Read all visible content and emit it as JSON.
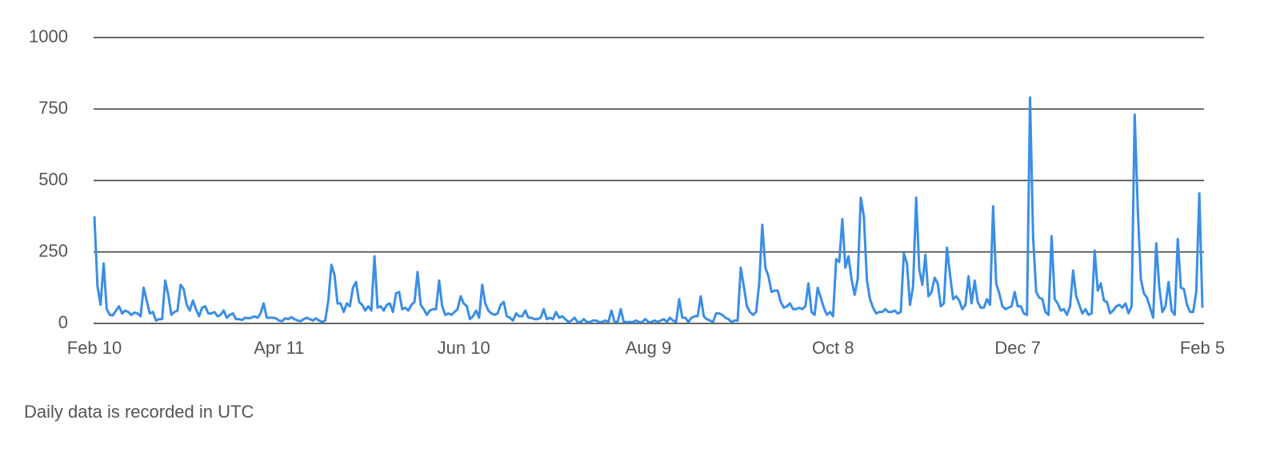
{
  "chart_data": {
    "type": "line",
    "footnote": "Daily data is recorded in UTC",
    "color": "#3a8ee6",
    "ylim": [
      0,
      1000
    ],
    "yticks": [
      0,
      250,
      500,
      750,
      1000
    ],
    "grid": true,
    "categories": [
      "Feb 10",
      null,
      null,
      null,
      null,
      null,
      null,
      null,
      null,
      null,
      null,
      null,
      null,
      null,
      null,
      null,
      null,
      null,
      null,
      null,
      null,
      null,
      null,
      null,
      null,
      null,
      null,
      null,
      null,
      null,
      null,
      null,
      null,
      null,
      null,
      null,
      null,
      null,
      null,
      null,
      null,
      null,
      null,
      null,
      null,
      null,
      null,
      null,
      null,
      null,
      null,
      null,
      null,
      null,
      null,
      null,
      null,
      null,
      null,
      null,
      "Apr 11",
      null,
      null,
      null,
      null,
      null,
      null,
      null,
      null,
      null,
      null,
      null,
      null,
      null,
      null,
      null,
      null,
      null,
      null,
      null,
      null,
      null,
      null,
      null,
      null,
      null,
      null,
      null,
      null,
      null,
      null,
      null,
      null,
      null,
      null,
      null,
      null,
      null,
      null,
      null,
      null,
      null,
      null,
      null,
      null,
      null,
      null,
      null,
      null,
      null,
      null,
      null,
      null,
      null,
      null,
      null,
      null,
      null,
      null,
      null,
      "Jun 10",
      null,
      null,
      null,
      null,
      null,
      null,
      null,
      null,
      null,
      null,
      null,
      null,
      null,
      null,
      null,
      null,
      null,
      null,
      null,
      null,
      null,
      null,
      null,
      null,
      null,
      null,
      null,
      null,
      null,
      null,
      null,
      null,
      null,
      null,
      null,
      null,
      null,
      null,
      null,
      null,
      null,
      null,
      null,
      null,
      null,
      null,
      null,
      null,
      null,
      null,
      null,
      null,
      null,
      null,
      null,
      null,
      null,
      null,
      null,
      "Aug 9",
      null,
      null,
      null,
      null,
      null,
      null,
      null,
      null,
      null,
      null,
      null,
      null,
      null,
      null,
      null,
      null,
      null,
      null,
      null,
      null,
      null,
      null,
      null,
      null,
      null,
      null,
      null,
      null,
      null,
      null,
      null,
      null,
      null,
      null,
      null,
      null,
      null,
      null,
      null,
      null,
      null,
      null,
      null,
      null,
      null,
      null,
      null,
      null,
      null,
      null,
      null,
      null,
      null,
      null,
      null,
      null,
      null,
      null,
      null,
      "Oct 8",
      null,
      null,
      null,
      null,
      null,
      null,
      null,
      null,
      null,
      null,
      null,
      null,
      null,
      null,
      null,
      null,
      null,
      null,
      null,
      null,
      null,
      null,
      null,
      null,
      null,
      null,
      null,
      null,
      null,
      null,
      null,
      null,
      null,
      null,
      null,
      null,
      null,
      null,
      null,
      null,
      null,
      null,
      null,
      null,
      null,
      null,
      null,
      null,
      null,
      null,
      null,
      null,
      null,
      null,
      null,
      null,
      null,
      null,
      null,
      "Dec 7",
      null,
      null,
      null,
      null,
      null,
      null,
      null,
      null,
      null,
      null,
      null,
      null,
      null,
      null,
      null,
      null,
      null,
      null,
      null,
      null,
      null,
      null,
      null,
      null,
      null,
      null,
      null,
      null,
      null,
      null,
      null,
      null,
      null,
      null,
      null,
      null,
      null,
      null,
      null,
      null,
      null,
      null,
      null,
      null,
      null,
      null,
      null,
      null,
      null,
      null,
      null,
      null,
      null,
      null,
      null,
      null,
      null,
      null,
      null,
      "Feb 5"
    ],
    "values": [
      375,
      130,
      65,
      210,
      50,
      30,
      28,
      45,
      60,
      35,
      45,
      40,
      30,
      38,
      35,
      25,
      125,
      80,
      35,
      40,
      10,
      15,
      15,
      150,
      100,
      30,
      40,
      45,
      135,
      120,
      65,
      45,
      80,
      50,
      25,
      55,
      60,
      35,
      35,
      40,
      25,
      30,
      45,
      20,
      30,
      35,
      15,
      15,
      12,
      20,
      18,
      20,
      25,
      20,
      35,
      70,
      20,
      20,
      20,
      18,
      10,
      8,
      18,
      15,
      22,
      15,
      10,
      8,
      15,
      20,
      15,
      10,
      18,
      10,
      5,
      10,
      80,
      205,
      170,
      70,
      70,
      40,
      70,
      60,
      125,
      145,
      75,
      65,
      45,
      60,
      45,
      235,
      55,
      60,
      45,
      65,
      70,
      40,
      105,
      110,
      50,
      55,
      45,
      65,
      75,
      180,
      65,
      50,
      30,
      45,
      50,
      50,
      150,
      60,
      30,
      35,
      30,
      40,
      50,
      95,
      70,
      60,
      15,
      25,
      45,
      20,
      135,
      70,
      45,
      35,
      30,
      35,
      65,
      75,
      25,
      20,
      10,
      35,
      25,
      25,
      45,
      20,
      20,
      15,
      15,
      20,
      50,
      15,
      20,
      15,
      40,
      20,
      25,
      15,
      5,
      10,
      20,
      5,
      5,
      15,
      5,
      5,
      10,
      10,
      5,
      5,
      10,
      5,
      45,
      5,
      5,
      50,
      5,
      5,
      5,
      5,
      10,
      5,
      5,
      15,
      5,
      5,
      10,
      5,
      10,
      15,
      5,
      20,
      10,
      5,
      85,
      20,
      20,
      5,
      20,
      25,
      25,
      95,
      25,
      15,
      10,
      5,
      35,
      35,
      30,
      20,
      15,
      5,
      10,
      10,
      195,
      130,
      60,
      40,
      30,
      40,
      140,
      345,
      195,
      165,
      110,
      115,
      115,
      75,
      55,
      60,
      70,
      50,
      50,
      55,
      50,
      60,
      140,
      40,
      30,
      125,
      90,
      55,
      30,
      40,
      25,
      225,
      215,
      365,
      195,
      235,
      155,
      100,
      155,
      440,
      375,
      150,
      85,
      55,
      35,
      40,
      40,
      50,
      40,
      40,
      45,
      35,
      40,
      245,
      210,
      65,
      130,
      440,
      190,
      135,
      240,
      95,
      110,
      160,
      140,
      60,
      70,
      265,
      170,
      85,
      95,
      80,
      50,
      65,
      165,
      70,
      150,
      75,
      55,
      55,
      85,
      65,
      410,
      140,
      105,
      60,
      50,
      55,
      60,
      110,
      60,
      60,
      35,
      30,
      790,
      300,
      110,
      90,
      85,
      40,
      30,
      305,
      85,
      70,
      45,
      50,
      30,
      60,
      185,
      95,
      65,
      35,
      50,
      30,
      35,
      255,
      115,
      140,
      80,
      75,
      35,
      45,
      60,
      65,
      55,
      70,
      35,
      60,
      730,
      400,
      155,
      105,
      90,
      55,
      20,
      280,
      125,
      40,
      60,
      145,
      45,
      30,
      295,
      125,
      120,
      65,
      40,
      40,
      110,
      455,
      55
    ]
  }
}
